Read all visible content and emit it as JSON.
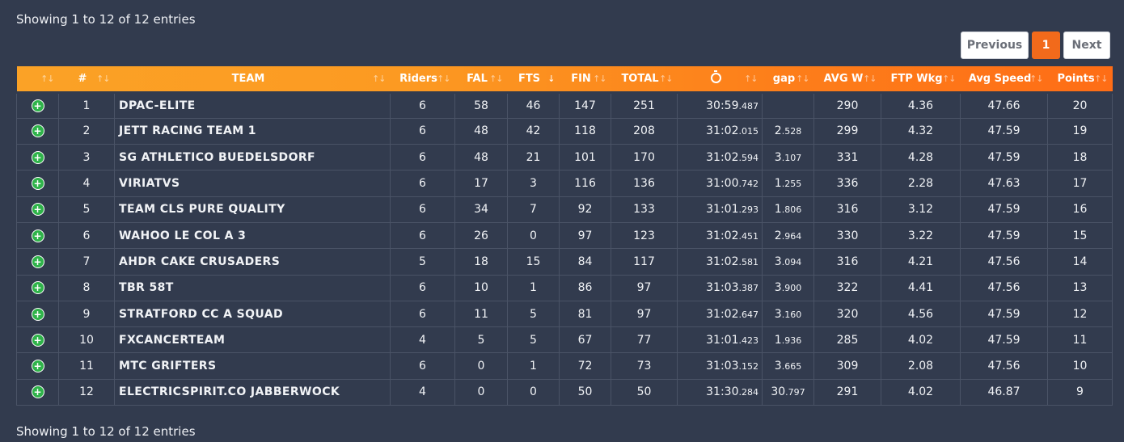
{
  "info_text": "Showing 1 to 12 of 12 entries",
  "pagination": {
    "previous": "Previous",
    "current": "1",
    "next": "Next"
  },
  "accent_color": "#f26a1b",
  "headers": {
    "rank": "#",
    "team": "TEAM",
    "riders": "Riders",
    "fal": "FAL",
    "fts": "FTS",
    "fin": "FIN",
    "total": "TOTAL",
    "time_icon": "stopwatch-icon",
    "gap": "gap",
    "avgw": "AVG W",
    "ftpwkg": "FTP Wkg",
    "avgspeed": "Avg Speed",
    "points": "Points"
  },
  "sort_indicator": "↑↓",
  "active_sort_indicator": "↓",
  "rows": [
    {
      "rank": "1",
      "team": "DPAC-ELITE",
      "riders": "6",
      "fal": "58",
      "fts": "46",
      "fin": "147",
      "total": "251",
      "time_main": "30:59",
      "time_ms": ".487",
      "gap_main": "",
      "gap_ms": "",
      "avgw": "290",
      "ftpwkg": "4.36",
      "avgspeed": "47.66",
      "points": "20"
    },
    {
      "rank": "2",
      "team": "JETT RACING TEAM 1",
      "riders": "6",
      "fal": "48",
      "fts": "42",
      "fin": "118",
      "total": "208",
      "time_main": "31:02",
      "time_ms": ".015",
      "gap_main": "2",
      "gap_ms": ".528",
      "avgw": "299",
      "ftpwkg": "4.32",
      "avgspeed": "47.59",
      "points": "19"
    },
    {
      "rank": "3",
      "team": "SG ATHLETICO BUEDELSDORF",
      "riders": "6",
      "fal": "48",
      "fts": "21",
      "fin": "101",
      "total": "170",
      "time_main": "31:02",
      "time_ms": ".594",
      "gap_main": "3",
      "gap_ms": ".107",
      "avgw": "331",
      "ftpwkg": "4.28",
      "avgspeed": "47.59",
      "points": "18"
    },
    {
      "rank": "4",
      "team": "VIRIATVS",
      "riders": "6",
      "fal": "17",
      "fts": "3",
      "fin": "116",
      "total": "136",
      "time_main": "31:00",
      "time_ms": ".742",
      "gap_main": "1",
      "gap_ms": ".255",
      "avgw": "336",
      "ftpwkg": "2.28",
      "avgspeed": "47.63",
      "points": "17"
    },
    {
      "rank": "5",
      "team": "TEAM CLS PURE QUALITY",
      "riders": "6",
      "fal": "34",
      "fts": "7",
      "fin": "92",
      "total": "133",
      "time_main": "31:01",
      "time_ms": ".293",
      "gap_main": "1",
      "gap_ms": ".806",
      "avgw": "316",
      "ftpwkg": "3.12",
      "avgspeed": "47.59",
      "points": "16"
    },
    {
      "rank": "6",
      "team": "WAHOO LE COL A 3",
      "riders": "6",
      "fal": "26",
      "fts": "0",
      "fin": "97",
      "total": "123",
      "time_main": "31:02",
      "time_ms": ".451",
      "gap_main": "2",
      "gap_ms": ".964",
      "avgw": "330",
      "ftpwkg": "3.22",
      "avgspeed": "47.59",
      "points": "15"
    },
    {
      "rank": "7",
      "team": "AHDR CAKE CRUSADERS",
      "riders": "5",
      "fal": "18",
      "fts": "15",
      "fin": "84",
      "total": "117",
      "time_main": "31:02",
      "time_ms": ".581",
      "gap_main": "3",
      "gap_ms": ".094",
      "avgw": "316",
      "ftpwkg": "4.21",
      "avgspeed": "47.56",
      "points": "14"
    },
    {
      "rank": "8",
      "team": "TBR 58T",
      "riders": "6",
      "fal": "10",
      "fts": "1",
      "fin": "86",
      "total": "97",
      "time_main": "31:03",
      "time_ms": ".387",
      "gap_main": "3",
      "gap_ms": ".900",
      "avgw": "322",
      "ftpwkg": "4.41",
      "avgspeed": "47.56",
      "points": "13"
    },
    {
      "rank": "9",
      "team": "STRATFORD CC A SQUAD",
      "riders": "6",
      "fal": "11",
      "fts": "5",
      "fin": "81",
      "total": "97",
      "time_main": "31:02",
      "time_ms": ".647",
      "gap_main": "3",
      "gap_ms": ".160",
      "avgw": "320",
      "ftpwkg": "4.56",
      "avgspeed": "47.59",
      "points": "12"
    },
    {
      "rank": "10",
      "team": "FXCANCERTEAM",
      "riders": "4",
      "fal": "5",
      "fts": "5",
      "fin": "67",
      "total": "77",
      "time_main": "31:01",
      "time_ms": ".423",
      "gap_main": "1",
      "gap_ms": ".936",
      "avgw": "285",
      "ftpwkg": "4.02",
      "avgspeed": "47.59",
      "points": "11"
    },
    {
      "rank": "11",
      "team": "MTC GRIFTERS",
      "riders": "6",
      "fal": "0",
      "fts": "1",
      "fin": "72",
      "total": "73",
      "time_main": "31:03",
      "time_ms": ".152",
      "gap_main": "3",
      "gap_ms": ".665",
      "avgw": "309",
      "ftpwkg": "2.08",
      "avgspeed": "47.56",
      "points": "10"
    },
    {
      "rank": "12",
      "team": "ELECTRICSPIRIT.CO JABBERWOCK",
      "riders": "4",
      "fal": "0",
      "fts": "0",
      "fin": "50",
      "total": "50",
      "time_main": "31:30",
      "time_ms": ".284",
      "gap_main": "30",
      "gap_ms": ".797",
      "avgw": "291",
      "ftpwkg": "4.02",
      "avgspeed": "46.87",
      "points": "9"
    }
  ]
}
